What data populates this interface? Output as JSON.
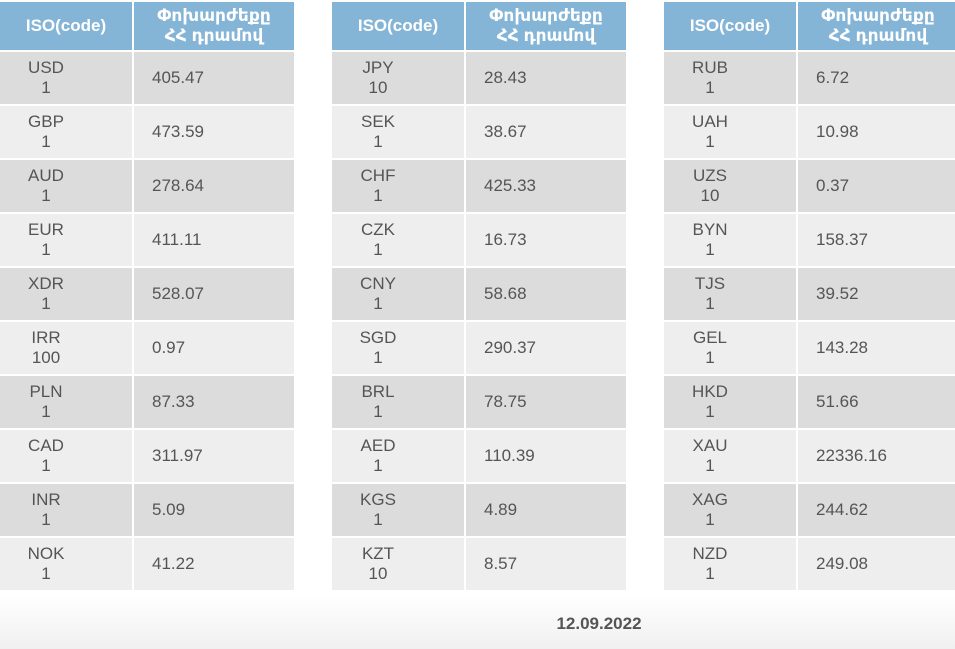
{
  "header": {
    "code_label": "ISO(code)",
    "rate_label_line1": "Փոխարժեքը",
    "rate_label_line2": "ՀՀ դրամով"
  },
  "tables": [
    {
      "rows": [
        {
          "code": "USD",
          "unit": "1",
          "rate": "405.47"
        },
        {
          "code": "GBP",
          "unit": "1",
          "rate": "473.59"
        },
        {
          "code": "AUD",
          "unit": "1",
          "rate": "278.64"
        },
        {
          "code": "EUR",
          "unit": "1",
          "rate": "411.11"
        },
        {
          "code": "XDR",
          "unit": "1",
          "rate": "528.07"
        },
        {
          "code": "IRR",
          "unit": "100",
          "rate": "0.97"
        },
        {
          "code": "PLN",
          "unit": "1",
          "rate": "87.33"
        },
        {
          "code": "CAD",
          "unit": "1",
          "rate": "311.97"
        },
        {
          "code": "INR",
          "unit": "1",
          "rate": "5.09"
        },
        {
          "code": "NOK",
          "unit": "1",
          "rate": "41.22"
        }
      ]
    },
    {
      "rows": [
        {
          "code": "JPY",
          "unit": "10",
          "rate": "28.43"
        },
        {
          "code": "SEK",
          "unit": "1",
          "rate": "38.67"
        },
        {
          "code": "CHF",
          "unit": "1",
          "rate": "425.33"
        },
        {
          "code": "CZK",
          "unit": "1",
          "rate": "16.73"
        },
        {
          "code": "CNY",
          "unit": "1",
          "rate": "58.68"
        },
        {
          "code": "SGD",
          "unit": "1",
          "rate": "290.37"
        },
        {
          "code": "BRL",
          "unit": "1",
          "rate": "78.75"
        },
        {
          "code": "AED",
          "unit": "1",
          "rate": "110.39"
        },
        {
          "code": "KGS",
          "unit": "1",
          "rate": "4.89"
        },
        {
          "code": "KZT",
          "unit": "10",
          "rate": "8.57"
        }
      ]
    },
    {
      "rows": [
        {
          "code": "RUB",
          "unit": "1",
          "rate": "6.72"
        },
        {
          "code": "UAH",
          "unit": "1",
          "rate": "10.98"
        },
        {
          "code": "UZS",
          "unit": "10",
          "rate": "0.37"
        },
        {
          "code": "BYN",
          "unit": "1",
          "rate": "158.37"
        },
        {
          "code": "TJS",
          "unit": "1",
          "rate": "39.52"
        },
        {
          "code": "GEL",
          "unit": "1",
          "rate": "143.28"
        },
        {
          "code": "HKD",
          "unit": "1",
          "rate": "51.66"
        },
        {
          "code": "XAU",
          "unit": "1",
          "rate": "22336.16"
        },
        {
          "code": "XAG",
          "unit": "1",
          "rate": "244.62"
        },
        {
          "code": "NZD",
          "unit": "1",
          "rate": "249.08"
        }
      ]
    }
  ],
  "footer": {
    "date": "12.09.2022"
  }
}
